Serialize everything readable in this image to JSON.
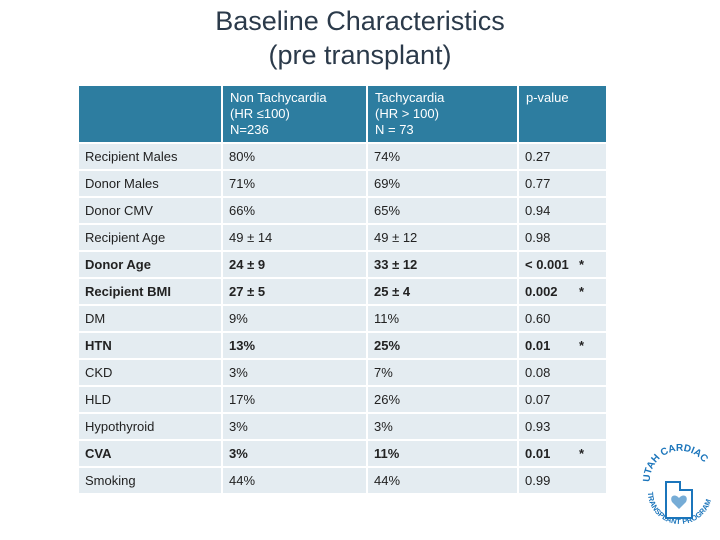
{
  "title": {
    "line1": "Baseline Characteristics",
    "line2": "(pre transplant)"
  },
  "table": {
    "headers": [
      {
        "lines": []
      },
      {
        "lines": [
          "Non Tachycardia",
          "(HR ≤100)",
          "N=236"
        ]
      },
      {
        "lines": [
          "Tachycardia",
          "(HR > 100)",
          "N = 73"
        ]
      },
      {
        "lines": [
          "p-value"
        ]
      }
    ],
    "rows": [
      {
        "label": "Recipient Males",
        "non": "80%",
        "tachy": "74%",
        "p": "0.27",
        "star": "",
        "bold": false
      },
      {
        "label": "Donor Males",
        "non": "71%",
        "tachy": "69%",
        "p": "0.77",
        "star": "",
        "bold": false
      },
      {
        "label": "Donor CMV",
        "non": "66%",
        "tachy": "65%",
        "p": "0.94",
        "star": "",
        "bold": false
      },
      {
        "label": "Recipient Age",
        "non": "49 ± 14",
        "tachy": "49 ± 12",
        "p": "0.98",
        "star": "",
        "bold": false
      },
      {
        "label": "Donor Age",
        "non": "24 ± 9",
        "tachy": "33 ± 12",
        "p": "< 0.001",
        "star": "*",
        "bold": true
      },
      {
        "label": "Recipient BMI",
        "non": "27 ± 5",
        "tachy": "25 ± 4",
        "p": "0.002",
        "star": "*",
        "bold": true
      },
      {
        "label": "DM",
        "non": "9%",
        "tachy": "11%",
        "p": "0.60",
        "star": "",
        "bold": false
      },
      {
        "label": "HTN",
        "non": "13%",
        "tachy": "25%",
        "p": "0.01",
        "star": "*",
        "bold": true
      },
      {
        "label": "CKD",
        "non": "3%",
        "tachy": "7%",
        "p": "0.08",
        "star": "",
        "bold": false
      },
      {
        "label": "HLD",
        "non": "17%",
        "tachy": "26%",
        "p": "0.07",
        "star": "",
        "bold": false
      },
      {
        "label": "Hypothyroid",
        "non": "3%",
        "tachy": "3%",
        "p": "0.93",
        "star": "",
        "bold": false
      },
      {
        "label": "CVA",
        "non": "3%",
        "tachy": "11%",
        "p": "0.01",
        "star": "*",
        "bold": true
      },
      {
        "label": "Smoking",
        "non": "44%",
        "tachy": "44%",
        "p": "0.99",
        "star": "",
        "bold": false
      }
    ]
  },
  "logo": {
    "top_text": "UTAH CARDIAC",
    "bottom_text": "TRANSPLANT PROGRAM",
    "color": "#1b75bb"
  }
}
